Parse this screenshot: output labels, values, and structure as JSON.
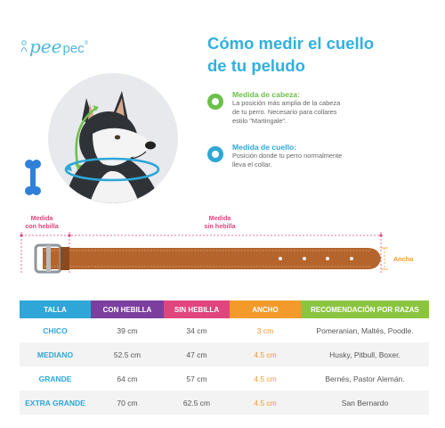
{
  "logo": {
    "part1": "pee",
    "part2": "pec",
    "mark": "®"
  },
  "title": {
    "line1": "Cómo medir el cuello",
    "line2": "de tu peludo"
  },
  "measures": [
    {
      "title": "Medida de cabeza:",
      "desc": [
        "La posición más amplia de la cabeza",
        "de tu perro. Necesario para collares",
        "estilo \"Martingale\"."
      ],
      "color": "#6cc04a",
      "icon": "head-measure-icon"
    },
    {
      "title": "Medida de cuello:",
      "desc": [
        "Posición donde tu perro normalmente",
        "lleva el collar."
      ],
      "color": "#2ea7d8",
      "icon": "neck-measure-icon"
    }
  ],
  "belt_labels": {
    "con_hebilla": [
      "Medida",
      "con hebilla"
    ],
    "sin_hebilla": [
      "Medida",
      "sin hebilla"
    ],
    "ancho": "Ancho"
  },
  "table": {
    "headers": [
      {
        "label": "TALLA",
        "color": "#2ea7d8"
      },
      {
        "label": "CON HEBILLA",
        "color": "#7c3fa0"
      },
      {
        "label": "SIN HEBILLA",
        "color": "#e0457e"
      },
      {
        "label": "ANCHO",
        "color": "#f39a2b"
      },
      {
        "label": "RECOMENDACIÓN POR RAZAS",
        "color": "#8bc53f"
      }
    ],
    "rows": [
      {
        "talla": "CHICO",
        "con": "39 cm",
        "sin": "34 cm",
        "ancho": "3 cm",
        "razas": "Pomeranian, Maltés, Poodle."
      },
      {
        "talla": "MEDIANO",
        "con": "52.5 cm",
        "sin": "47 cm",
        "ancho": "4.5 cm",
        "razas": "Husky, Pitbull, Boxer."
      },
      {
        "talla": "GRANDE",
        "con": "64 cm",
        "sin": "57 cm",
        "ancho": "4.5 cm",
        "razas": "Bernés, Pastor Alemán."
      },
      {
        "talla": "EXTRA GRANDE",
        "con": "70 cm",
        "sin": "62.5 cm",
        "ancho": "4.5 cm",
        "razas": "San Bernardo"
      }
    ]
  },
  "colors": {
    "title": "#30b0e0",
    "belt": "#b5652c",
    "belt_dark": "#8a4a1e",
    "pink": "#e0457e",
    "orange": "#f39a2b",
    "bone": "#2f80d8"
  }
}
